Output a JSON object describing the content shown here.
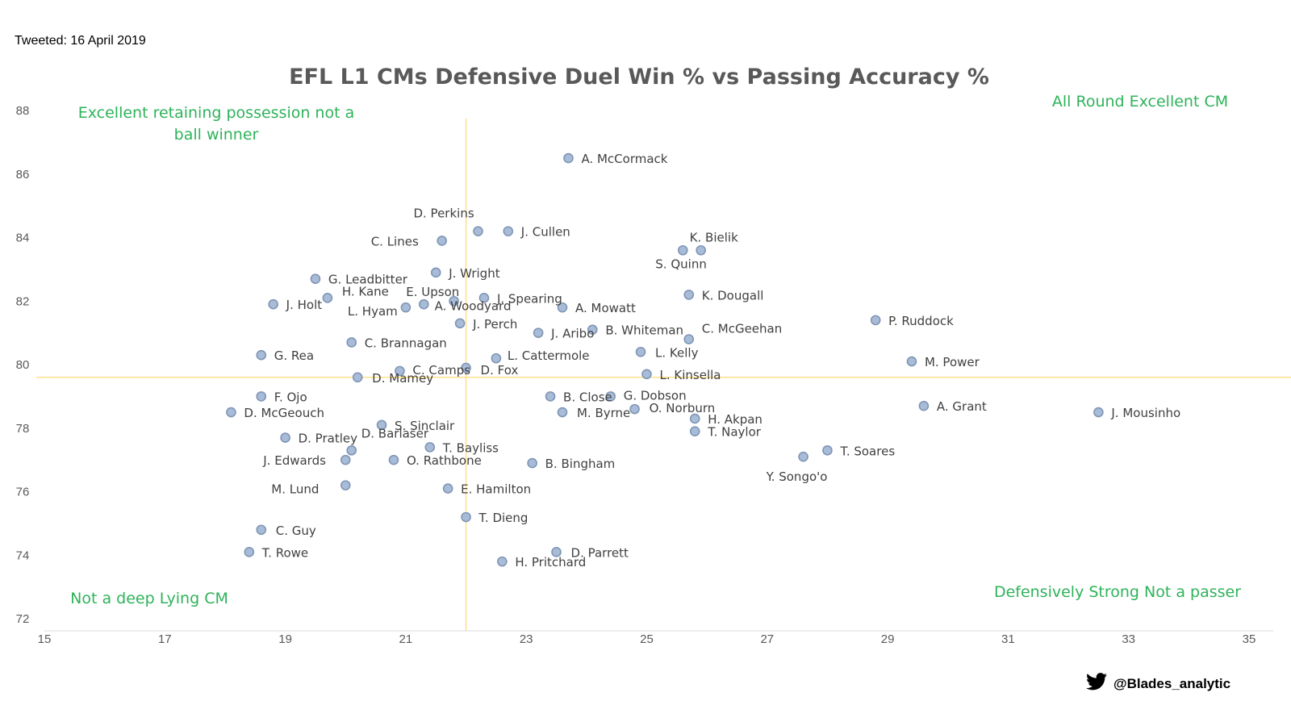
{
  "tweeted": "Tweeted: 16 April 2019",
  "credit": {
    "handle": "@Blades_analytic",
    "icon": "twitter-bird-icon"
  },
  "colors": {
    "point_fill": "#a8bcd8",
    "point_stroke": "#7f95b5",
    "divider": "#ffe08a",
    "quadrant_text": "#2eb35a",
    "title": "#595959"
  },
  "chart_data": {
    "type": "scatter",
    "title": "EFL L1 CMs Defensive Duel Win % vs Passing Accuracy %",
    "xlabel": "",
    "ylabel": "",
    "xlim": [
      15,
      35
    ],
    "ylim": [
      72,
      88
    ],
    "xticks": [
      15,
      17,
      19,
      21,
      23,
      25,
      27,
      29,
      31,
      33,
      35
    ],
    "yticks": [
      72,
      74,
      76,
      78,
      80,
      82,
      84,
      86,
      88
    ],
    "grid": false,
    "dividers": {
      "x": 22,
      "y": 79.6
    },
    "quadrant_labels": [
      {
        "lines": [
          "Excellent retaining possession not a",
          "ball winner"
        ],
        "position": "top-left"
      },
      {
        "lines": [
          "All Round Excellent CM"
        ],
        "position": "top-right"
      },
      {
        "lines": [
          "Not a deep Lying CM"
        ],
        "position": "bottom-left"
      },
      {
        "lines": [
          "Defensively Strong Not a passer"
        ],
        "position": "bottom-right"
      }
    ],
    "points": [
      {
        "name": "A. McCormack",
        "x": 23.7,
        "y": 86.5
      },
      {
        "name": "D. Perkins",
        "x": 22.2,
        "y": 84.2
      },
      {
        "name": "J. Cullen",
        "x": 22.7,
        "y": 84.2
      },
      {
        "name": "C. Lines",
        "x": 21.6,
        "y": 83.9
      },
      {
        "name": "K. Bielik",
        "x": 25.9,
        "y": 83.6
      },
      {
        "name": "S. Quinn",
        "x": 25.6,
        "y": 83.6
      },
      {
        "name": "J. Wright",
        "x": 21.5,
        "y": 82.9
      },
      {
        "name": "G. Leadbitter",
        "x": 19.5,
        "y": 82.7
      },
      {
        "name": "K. Dougall",
        "x": 25.7,
        "y": 82.2
      },
      {
        "name": "H. Kane",
        "x": 19.7,
        "y": 82.1
      },
      {
        "name": "J. Holt",
        "x": 18.8,
        "y": 81.9
      },
      {
        "name": "E. Upson",
        "x": 21.3,
        "y": 81.9
      },
      {
        "name": "J. Spearing",
        "x": 22.3,
        "y": 82.1
      },
      {
        "name": "A. Woodyard",
        "x": 21.8,
        "y": 82.0
      },
      {
        "name": "L. Hyam",
        "x": 21.0,
        "y": 81.8
      },
      {
        "name": "A. Mowatt",
        "x": 23.6,
        "y": 81.8
      },
      {
        "name": "J. Perch",
        "x": 21.9,
        "y": 81.3
      },
      {
        "name": "P. Ruddock",
        "x": 28.8,
        "y": 81.4
      },
      {
        "name": "J. Aribo",
        "x": 23.2,
        "y": 81.0
      },
      {
        "name": "B. Whiteman",
        "x": 24.1,
        "y": 81.1
      },
      {
        "name": "C. McGeehan",
        "x": 25.7,
        "y": 80.8
      },
      {
        "name": "C. Brannagan",
        "x": 20.1,
        "y": 80.7
      },
      {
        "name": "L. Kelly",
        "x": 24.9,
        "y": 80.4
      },
      {
        "name": "G. Rea",
        "x": 18.6,
        "y": 80.3
      },
      {
        "name": "L. Cattermole",
        "x": 22.5,
        "y": 80.2
      },
      {
        "name": "M. Power",
        "x": 29.4,
        "y": 80.1
      },
      {
        "name": "D. Fox",
        "x": 22.0,
        "y": 79.9
      },
      {
        "name": "C. Camps",
        "x": 20.9,
        "y": 79.8
      },
      {
        "name": "D. Mamey",
        "x": 20.2,
        "y": 79.6
      },
      {
        "name": "L. Kinsella",
        "x": 25.0,
        "y": 79.7
      },
      {
        "name": "F. Ojo",
        "x": 18.6,
        "y": 79.0
      },
      {
        "name": "B. Close",
        "x": 23.4,
        "y": 79.0
      },
      {
        "name": "G. Dobson",
        "x": 24.4,
        "y": 79.0
      },
      {
        "name": "D. McGeouch",
        "x": 18.1,
        "y": 78.5
      },
      {
        "name": "M. Byrne",
        "x": 23.6,
        "y": 78.5
      },
      {
        "name": "O. Norburn",
        "x": 24.8,
        "y": 78.6
      },
      {
        "name": "A. Grant",
        "x": 29.6,
        "y": 78.7
      },
      {
        "name": "J. Mousinho",
        "x": 32.5,
        "y": 78.5
      },
      {
        "name": "H. Akpan",
        "x": 25.8,
        "y": 78.3
      },
      {
        "name": "S. Sinclair",
        "x": 20.6,
        "y": 78.1
      },
      {
        "name": "T. Naylor",
        "x": 25.8,
        "y": 77.9
      },
      {
        "name": "D. Pratley",
        "x": 19.0,
        "y": 77.7
      },
      {
        "name": "D. Barlaser",
        "x": 20.1,
        "y": 77.3
      },
      {
        "name": "T. Bayliss",
        "x": 21.4,
        "y": 77.4
      },
      {
        "name": "T. Soares",
        "x": 28.0,
        "y": 77.3
      },
      {
        "name": "Y. Songo'o",
        "x": 27.6,
        "y": 77.1
      },
      {
        "name": "J. Edwards",
        "x": 20.0,
        "y": 77.0
      },
      {
        "name": "O. Rathbone",
        "x": 20.8,
        "y": 77.0
      },
      {
        "name": "B. Bingham",
        "x": 23.1,
        "y": 76.9
      },
      {
        "name": "M. Lund",
        "x": 20.0,
        "y": 76.2
      },
      {
        "name": "E. Hamilton",
        "x": 21.7,
        "y": 76.1
      },
      {
        "name": "T. Dieng",
        "x": 22.0,
        "y": 75.2
      },
      {
        "name": "C. Guy",
        "x": 18.6,
        "y": 74.8
      },
      {
        "name": "T. Rowe",
        "x": 18.4,
        "y": 74.1
      },
      {
        "name": "D. Parrett",
        "x": 23.5,
        "y": 74.1
      },
      {
        "name": "H. Pritchard",
        "x": 22.6,
        "y": 73.8
      }
    ]
  }
}
